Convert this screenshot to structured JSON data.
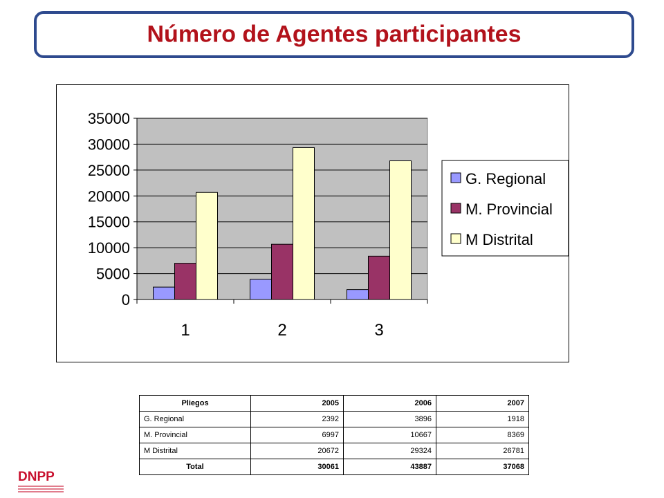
{
  "title": "Número de Agentes participantes",
  "chart_data": {
    "type": "bar",
    "categories": [
      "1",
      "2",
      "3"
    ],
    "series": [
      {
        "name": "G. Regional",
        "values": [
          2392,
          3896,
          1918
        ],
        "color": "#9999ff"
      },
      {
        "name": "M. Provincial",
        "values": [
          6997,
          10667,
          8369
        ],
        "color": "#993366"
      },
      {
        "name": "M Distrital",
        "values": [
          20672,
          29324,
          26781
        ],
        "color": "#ffffcc"
      }
    ],
    "ylim": [
      0,
      35000
    ],
    "yticks": [
      "0",
      "5000",
      "10000",
      "15000",
      "20000",
      "25000",
      "30000",
      "35000"
    ],
    "grid": true,
    "legend_position": "right",
    "plot_background": "#c0c0c0"
  },
  "table": {
    "header": [
      "Pliegos",
      "2005",
      "2006",
      "2007"
    ],
    "rows": [
      [
        "G. Regional",
        "2392",
        "3896",
        "1918"
      ],
      [
        "M. Provincial",
        "6997",
        "10667",
        "8369"
      ],
      [
        "M Distrital",
        "20672",
        "29324",
        "26781"
      ]
    ],
    "total": [
      "Total",
      "30061",
      "43887",
      "37068"
    ]
  },
  "logo": {
    "text": "DNPP",
    "color": "#c8102e"
  }
}
